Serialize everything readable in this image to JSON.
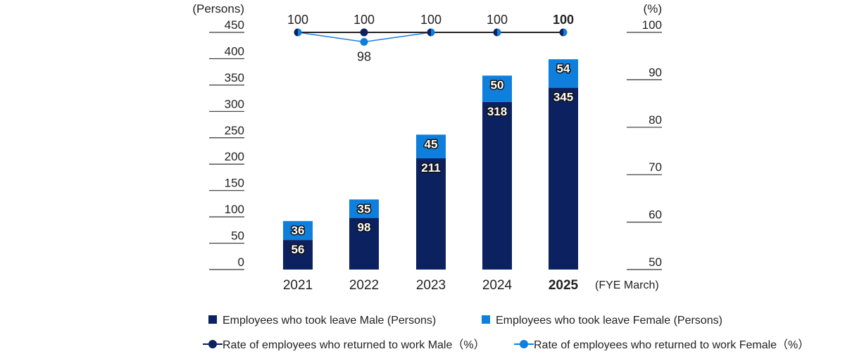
{
  "chart_data": {
    "type": "bar+line",
    "categories": [
      "2021",
      "2022",
      "2023",
      "2024",
      "2025"
    ],
    "highlight_category": "2025",
    "x_unit_label": "(FYE March)",
    "left_axis": {
      "label": "(Persons)",
      "ylim": [
        0,
        450
      ],
      "ticks": [
        0,
        50,
        100,
        150,
        200,
        250,
        300,
        350,
        400,
        450
      ]
    },
    "right_axis": {
      "label": "(%)",
      "ylim": [
        50,
        100
      ],
      "ticks": [
        50,
        60,
        70,
        80,
        90,
        100
      ]
    },
    "bar_series": [
      {
        "name": "Employees who took leave Male (Persons)",
        "values": [
          56,
          98,
          211,
          318,
          345
        ],
        "color": "#0b2160"
      },
      {
        "name": "Employees who took leave Female (Persons)",
        "values": [
          36,
          35,
          45,
          50,
          54
        ],
        "color": "#0f7fdd"
      }
    ],
    "line_series": [
      {
        "name": "Rate of employees who returned to work  Male（%）",
        "values": [
          100,
          100,
          100,
          100,
          100
        ],
        "color": "#0b2160",
        "line_color": "#222222"
      },
      {
        "name": "Rate of employees who returned to work  Female（%）",
        "values": [
          100,
          98,
          100,
          100,
          100
        ],
        "color": "#0f7fdd",
        "line_color": "#1a7fe0"
      }
    ],
    "grid": false,
    "legend_position": "bottom"
  }
}
